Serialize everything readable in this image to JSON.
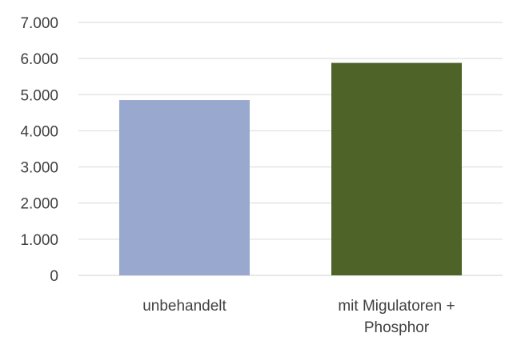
{
  "chart_data": {
    "type": "bar",
    "categories": [
      [
        "unbehandelt"
      ],
      [
        "mit Migulatoren +",
        "Phosphor"
      ]
    ],
    "values": [
      4850,
      5880
    ],
    "colors": [
      "#98A8CF",
      "#4E6327"
    ],
    "ylim": [
      0,
      7000
    ],
    "yticks": [
      0,
      1000,
      2000,
      3000,
      4000,
      5000,
      6000,
      7000
    ],
    "ytick_labels": [
      "0",
      "1.000",
      "2.000",
      "3.000",
      "4.000",
      "5.000",
      "6.000",
      "7.000"
    ],
    "grid": true,
    "legend": "none"
  }
}
